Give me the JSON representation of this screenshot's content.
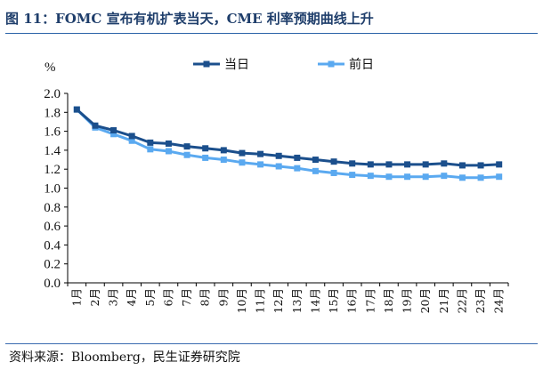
{
  "figure": {
    "title": "图 11：FOMC 宣布有机扩表当天，CME 利率预期曲线上升",
    "source": "资料来源：Bloomberg，民生证券研究院"
  },
  "colors": {
    "series1": "#1b4f8c",
    "series2": "#5aa9f0",
    "title": "#1f3e6b",
    "rule": "#2a62a8"
  },
  "chart_data": {
    "type": "line",
    "title": "",
    "ylabel": "%",
    "xlabel": "",
    "ylim": [
      0.0,
      2.0
    ],
    "yticks": [
      "0.0",
      "0.2",
      "0.4",
      "0.6",
      "0.8",
      "1.0",
      "1.2",
      "1.4",
      "1.6",
      "1.8",
      "2.0"
    ],
    "categories": [
      "1月",
      "2月",
      "3月",
      "4月",
      "5月",
      "6月",
      "7月",
      "8月",
      "9月",
      "10月",
      "11月",
      "12月",
      "13月",
      "14月",
      "15月",
      "16月",
      "17月",
      "18月",
      "19月",
      "20月",
      "21月",
      "22月",
      "23月",
      "24月"
    ],
    "legend_position": "top",
    "series": [
      {
        "name": "当日",
        "values": [
          1.83,
          1.66,
          1.61,
          1.55,
          1.48,
          1.47,
          1.44,
          1.42,
          1.4,
          1.37,
          1.36,
          1.34,
          1.32,
          1.3,
          1.28,
          1.26,
          1.25,
          1.25,
          1.25,
          1.25,
          1.26,
          1.24,
          1.24,
          1.25
        ]
      },
      {
        "name": "前日",
        "values": [
          1.83,
          1.64,
          1.57,
          1.5,
          1.41,
          1.39,
          1.35,
          1.32,
          1.3,
          1.27,
          1.25,
          1.23,
          1.21,
          1.18,
          1.16,
          1.14,
          1.13,
          1.12,
          1.12,
          1.12,
          1.13,
          1.11,
          1.11,
          1.12
        ]
      }
    ]
  }
}
